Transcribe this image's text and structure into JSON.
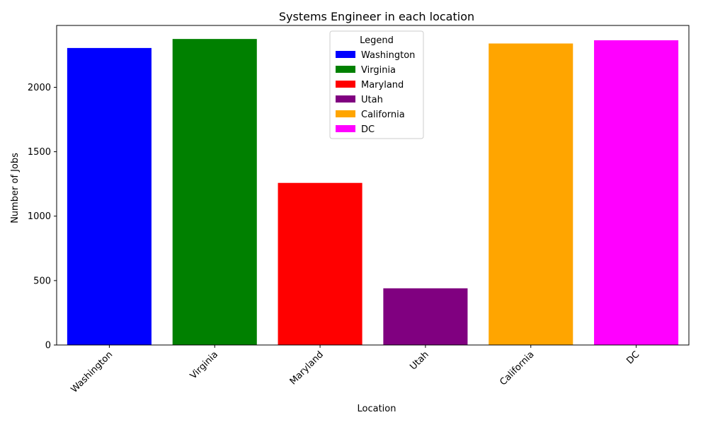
{
  "chart_data": {
    "type": "bar",
    "title": "Systems Engineer in each location",
    "xlabel": "Location",
    "ylabel": "Number of Jobs",
    "categories": [
      "Washington",
      "Virginia",
      "Maryland",
      "Utah",
      "California",
      "DC"
    ],
    "values": [
      2305,
      2375,
      1258,
      440,
      2340,
      2365
    ],
    "colors": [
      "#0000ff",
      "#008000",
      "#ff0000",
      "#800080",
      "#ffa500",
      "#ff00ff"
    ],
    "ylim": [
      0,
      2480
    ],
    "yticks": [
      0,
      500,
      1000,
      1500,
      2000
    ],
    "grid": false,
    "legend": {
      "title": "Legend",
      "placement": "top-center",
      "entries": [
        "Washington",
        "Virginia",
        "Maryland",
        "Utah",
        "California",
        "DC"
      ]
    }
  }
}
